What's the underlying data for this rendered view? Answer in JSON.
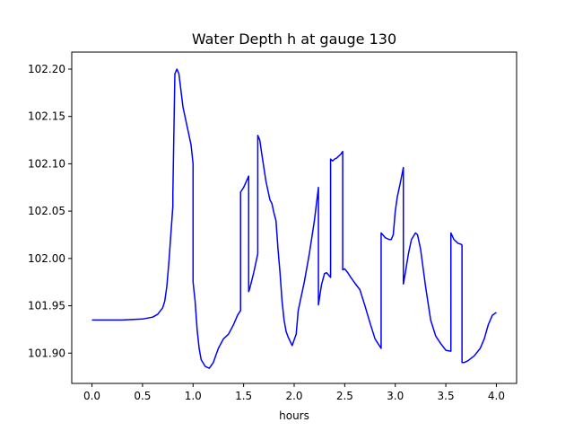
{
  "chart_data": {
    "type": "line",
    "title": "Water Depth h at gauge 130",
    "xlabel": "hours",
    "ylabel": "",
    "xlim": [
      -0.2,
      4.2
    ],
    "ylim": [
      101.868,
      102.218
    ],
    "grid": false,
    "legend": "none",
    "x_ticks": [
      {
        "value": 0.0,
        "label": "0.0"
      },
      {
        "value": 0.5,
        "label": "0.5"
      },
      {
        "value": 1.0,
        "label": "1.0"
      },
      {
        "value": 1.5,
        "label": "1.5"
      },
      {
        "value": 2.0,
        "label": "2.0"
      },
      {
        "value": 2.5,
        "label": "2.5"
      },
      {
        "value": 3.0,
        "label": "3.0"
      },
      {
        "value": 3.5,
        "label": "3.5"
      },
      {
        "value": 4.0,
        "label": "4.0"
      }
    ],
    "y_ticks": [
      {
        "value": 101.9,
        "label": "101.90"
      },
      {
        "value": 101.95,
        "label": "101.95"
      },
      {
        "value": 102.0,
        "label": "102.00"
      },
      {
        "value": 102.05,
        "label": "102.05"
      },
      {
        "value": 102.1,
        "label": "102.10"
      },
      {
        "value": 102.15,
        "label": "102.15"
      },
      {
        "value": 102.2,
        "label": "102.20"
      }
    ],
    "series": [
      {
        "color": "#0000ff",
        "x": [
          0.0,
          0.3,
          0.5,
          0.6,
          0.65,
          0.7,
          0.72,
          0.74,
          0.76,
          0.78,
          0.8,
          0.8,
          0.82,
          0.84,
          0.86,
          0.9,
          0.95,
          0.98,
          1.0,
          1.0,
          1.02,
          1.04,
          1.06,
          1.08,
          1.12,
          1.16,
          1.2,
          1.25,
          1.3,
          1.35,
          1.4,
          1.44,
          1.47,
          1.47,
          1.5,
          1.55,
          1.55,
          1.56,
          1.6,
          1.63,
          1.64,
          1.64,
          1.66,
          1.68,
          1.72,
          1.76,
          1.78,
          1.8,
          1.82,
          1.84,
          1.86,
          1.88,
          1.9,
          1.92,
          1.94,
          1.98,
          2.02,
          2.04,
          2.06,
          2.1,
          2.15,
          2.2,
          2.24,
          2.24,
          2.27,
          2.3,
          2.32,
          2.36,
          2.36,
          2.38,
          2.4,
          2.42,
          2.44,
          2.46,
          2.48,
          2.48,
          2.5,
          2.53,
          2.56,
          2.6,
          2.65,
          2.7,
          2.75,
          2.8,
          2.86,
          2.86,
          2.9,
          2.94,
          2.96,
          2.98,
          3.0,
          3.02,
          3.05,
          3.08,
          3.08,
          3.1,
          3.13,
          3.16,
          3.2,
          3.22,
          3.25,
          3.3,
          3.35,
          3.4,
          3.45,
          3.5,
          3.55,
          3.55,
          3.58,
          3.62,
          3.65,
          3.66,
          3.66,
          3.68,
          3.72,
          3.78,
          3.84,
          3.88,
          3.92,
          3.96,
          4.0
        ],
        "values": [
          101.935,
          101.935,
          101.936,
          101.938,
          101.941,
          101.948,
          101.955,
          101.97,
          101.995,
          102.025,
          102.055,
          102.068,
          102.195,
          102.2,
          102.195,
          102.16,
          102.135,
          102.12,
          102.1,
          101.975,
          101.955,
          101.925,
          101.905,
          101.893,
          101.886,
          101.884,
          101.89,
          101.905,
          101.915,
          101.92,
          101.93,
          101.94,
          101.945,
          102.07,
          102.075,
          102.087,
          101.965,
          101.968,
          101.985,
          102.0,
          102.005,
          102.13,
          102.125,
          102.11,
          102.082,
          102.062,
          102.058,
          102.048,
          102.04,
          102.01,
          101.985,
          101.955,
          101.935,
          101.923,
          101.917,
          101.908,
          101.92,
          101.945,
          101.955,
          101.975,
          102.005,
          102.04,
          102.075,
          101.951,
          101.972,
          101.984,
          101.985,
          101.98,
          102.105,
          102.103,
          102.105,
          102.106,
          102.108,
          102.11,
          102.113,
          101.988,
          101.989,
          101.985,
          101.98,
          101.974,
          101.967,
          101.95,
          101.932,
          101.915,
          101.905,
          102.027,
          102.022,
          102.02,
          102.02,
          102.025,
          102.05,
          102.065,
          102.08,
          102.096,
          101.973,
          101.985,
          102.005,
          102.02,
          102.027,
          102.025,
          102.01,
          101.97,
          101.935,
          101.918,
          101.91,
          101.903,
          101.902,
          102.027,
          102.02,
          102.016,
          102.015,
          102.014,
          101.89,
          101.89,
          101.892,
          101.897,
          101.905,
          101.915,
          101.93,
          101.94,
          101.943
        ]
      }
    ]
  }
}
